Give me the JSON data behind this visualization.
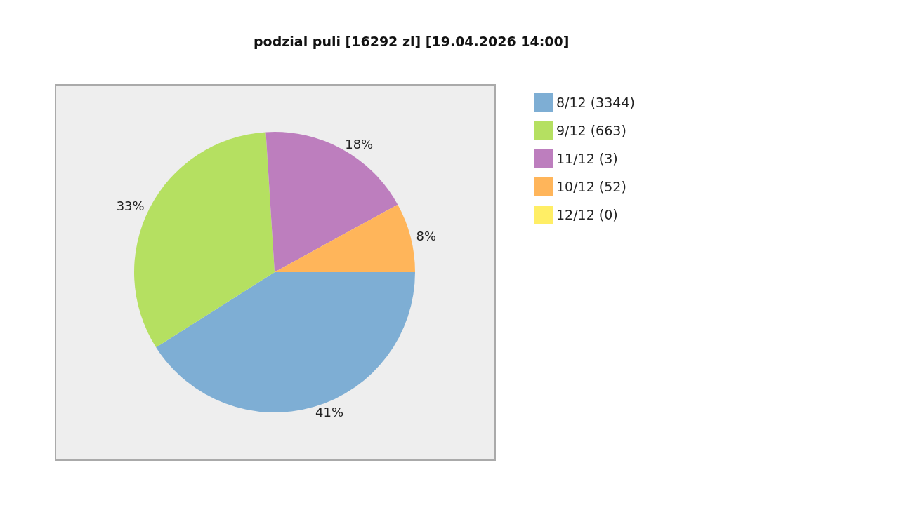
{
  "chart_data": {
    "type": "pie",
    "title": "podzial puli [16292 zl] [19.04.2026 14:00]",
    "categories": [
      "8/12 (3344)",
      "9/12 (663)",
      "11/12 (3)",
      "10/12 (52)",
      "12/12 (0)"
    ],
    "values": [
      41,
      33,
      18,
      8,
      0
    ],
    "colors": [
      "#7eaed4",
      "#b5e061",
      "#bd7ebe",
      "#ffb55a",
      "#ffee65"
    ],
    "value_labels": [
      "41%",
      "33%",
      "18%",
      "8%",
      null
    ],
    "legend": "top right"
  }
}
